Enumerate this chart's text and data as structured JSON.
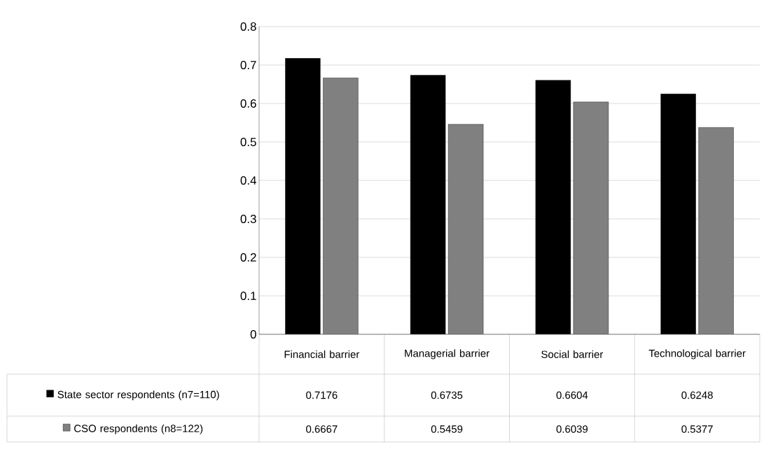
{
  "chart_data": {
    "type": "bar",
    "categories": [
      "Financial barrier",
      "Managerial barrier",
      "Social barrier",
      "Technological barrier"
    ],
    "series": [
      {
        "name": "State sector respondents (n7=110)",
        "color": "#000000",
        "values": [
          0.7176,
          0.6735,
          0.6604,
          0.6248
        ]
      },
      {
        "name": "CSO respondents (n8=122)",
        "color": "#808080",
        "values": [
          0.6667,
          0.5459,
          0.6039,
          0.5377
        ]
      }
    ],
    "ylim": [
      0,
      0.8
    ],
    "yticks": [
      0,
      0.1,
      0.2,
      0.3,
      0.4,
      0.5,
      0.6,
      0.7,
      0.8
    ],
    "grid": "y",
    "legend": "bottom",
    "data_labels": true
  }
}
